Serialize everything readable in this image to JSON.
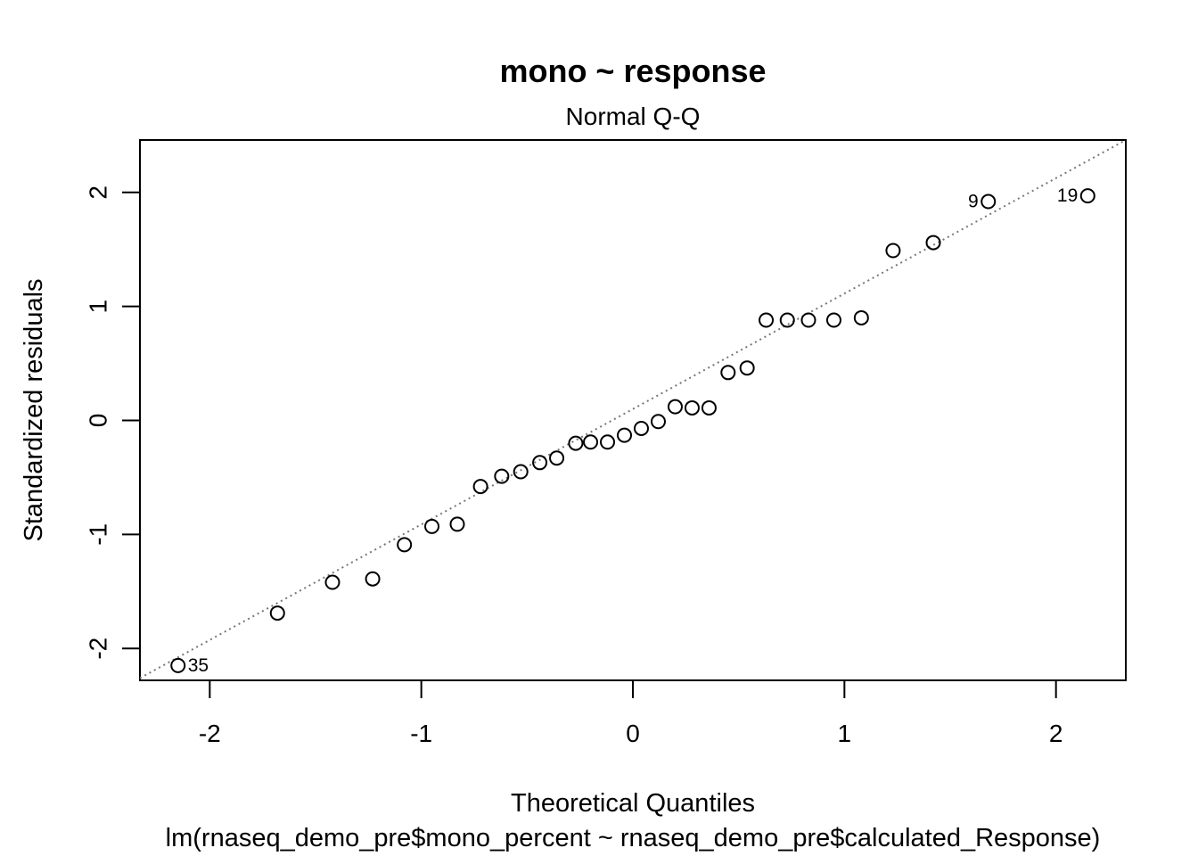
{
  "chart_data": {
    "type": "scatter",
    "title": "mono ~ response",
    "subtitle": "Normal Q-Q",
    "xlabel": "Theoretical Quantiles",
    "ylabel": "Standardized residuals",
    "caption": "lm(rnaseq_demo_pre$mono_percent ~ rnaseq_demo_pre$calculated_Response)",
    "xlim": [
      -2.33,
      2.33
    ],
    "ylim": [
      -2.28,
      2.46
    ],
    "x_ticks": [
      -2,
      -1,
      0,
      1,
      2
    ],
    "x_tick_labels": [
      "-2",
      "-1",
      "0",
      "1",
      "2"
    ],
    "y_ticks": [
      -2,
      -1,
      0,
      1,
      2
    ],
    "y_tick_labels": [
      "-2",
      "-1",
      "0",
      "1",
      "2"
    ],
    "grid": false,
    "reference_line": {
      "style": "dotted",
      "color": "#777777",
      "points": [
        [
          -2.33,
          -2.26
        ],
        [
          2.33,
          2.46
        ]
      ]
    },
    "points": [
      {
        "x": -2.15,
        "y": -2.15,
        "label": "35"
      },
      {
        "x": -1.68,
        "y": -1.69
      },
      {
        "x": -1.42,
        "y": -1.42
      },
      {
        "x": -1.23,
        "y": -1.39
      },
      {
        "x": -1.08,
        "y": -1.09
      },
      {
        "x": -0.95,
        "y": -0.93
      },
      {
        "x": -0.83,
        "y": -0.91
      },
      {
        "x": -0.72,
        "y": -0.58
      },
      {
        "x": -0.62,
        "y": -0.49
      },
      {
        "x": -0.53,
        "y": -0.45
      },
      {
        "x": -0.44,
        "y": -0.37
      },
      {
        "x": -0.36,
        "y": -0.33
      },
      {
        "x": -0.27,
        "y": -0.2
      },
      {
        "x": -0.2,
        "y": -0.19
      },
      {
        "x": -0.12,
        "y": -0.19
      },
      {
        "x": -0.04,
        "y": -0.13
      },
      {
        "x": 0.04,
        "y": -0.07
      },
      {
        "x": 0.12,
        "y": -0.01
      },
      {
        "x": 0.2,
        "y": 0.12
      },
      {
        "x": 0.28,
        "y": 0.11
      },
      {
        "x": 0.36,
        "y": 0.11
      },
      {
        "x": 0.45,
        "y": 0.42
      },
      {
        "x": 0.54,
        "y": 0.46
      },
      {
        "x": 0.63,
        "y": 0.88
      },
      {
        "x": 0.73,
        "y": 0.88
      },
      {
        "x": 0.83,
        "y": 0.88
      },
      {
        "x": 0.95,
        "y": 0.88
      },
      {
        "x": 1.08,
        "y": 0.9
      },
      {
        "x": 1.23,
        "y": 1.49
      },
      {
        "x": 1.42,
        "y": 1.56
      },
      {
        "x": 1.68,
        "y": 1.92,
        "label": "9"
      },
      {
        "x": 2.15,
        "y": 1.97,
        "label": "19"
      }
    ]
  }
}
